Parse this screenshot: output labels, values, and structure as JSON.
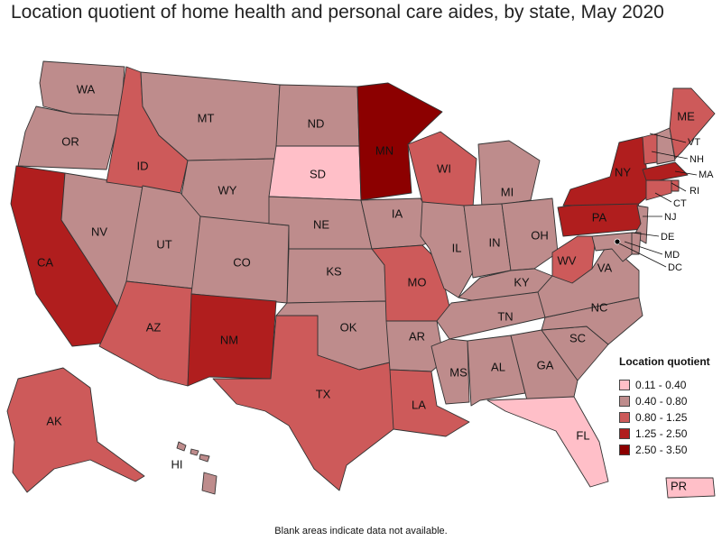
{
  "title": "Location quotient of home health and personal care aides, by state, May 2020",
  "legend": {
    "title": "Location quotient",
    "items": [
      {
        "label": "0.11 - 0.40",
        "color": "#ffbfc8"
      },
      {
        "label": "0.40 - 0.80",
        "color": "#be8c8c"
      },
      {
        "label": "0.80 - 1.25",
        "color": "#cd5a5a"
      },
      {
        "label": "1.25 - 2.50",
        "color": "#b01e1e"
      },
      {
        "label": "2.50 - 3.50",
        "color": "#8c0000"
      }
    ]
  },
  "footer": "Blank areas indicate data not available.",
  "states": {
    "WA": 1,
    "OR": 1,
    "CA": 3,
    "NV": 1,
    "ID": 2,
    "MT": 1,
    "WY": 1,
    "UT": 1,
    "AZ": 2,
    "CO": 1,
    "NM": 3,
    "ND": 1,
    "SD": 0,
    "NE": 1,
    "KS": 1,
    "OK": 1,
    "TX": 2,
    "MN": 4,
    "IA": 1,
    "MO": 2,
    "AR": 1,
    "LA": 2,
    "WI": 2,
    "IL": 1,
    "MI": 1,
    "IN": 1,
    "OH": 1,
    "KY": 1,
    "TN": 1,
    "MS": 1,
    "AL": 1,
    "GA": 1,
    "FL": 0,
    "SC": 1,
    "NC": 1,
    "VA": 1,
    "WV": 2,
    "PA": 3,
    "NY": 3,
    "VT": 2,
    "NH": 1,
    "ME": 2,
    "MA": 3,
    "RI": 2,
    "CT": 2,
    "NJ": 1,
    "DE": 1,
    "MD": 1,
    "DC": 4,
    "AK": 2,
    "HI": 1,
    "PR": 0
  }
}
